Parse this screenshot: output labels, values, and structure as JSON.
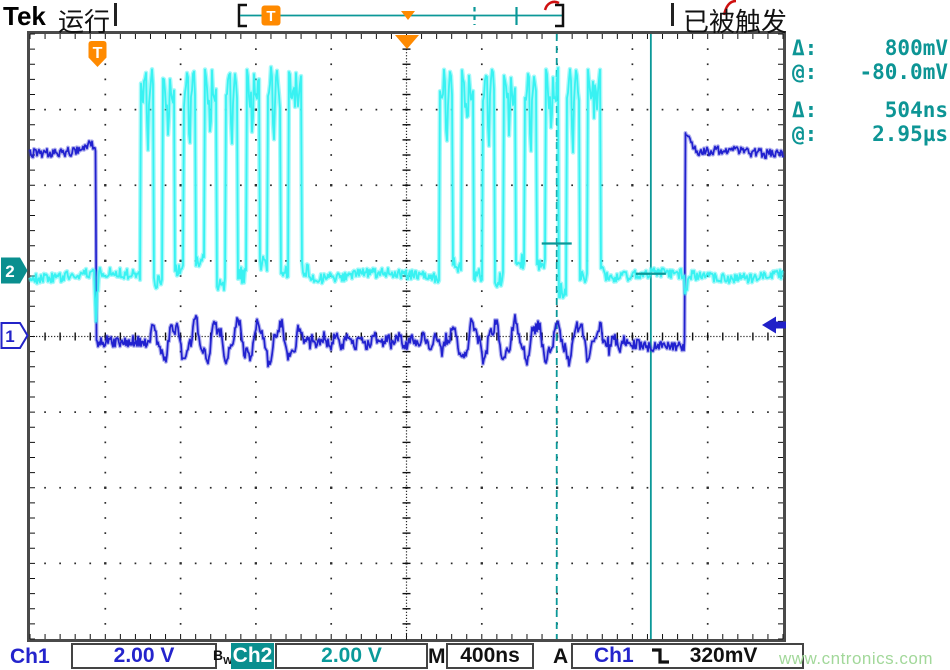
{
  "header": {
    "logo": "Tek",
    "acq_status": "运行",
    "trigger_status": "已被触发"
  },
  "record_bar": {
    "trigger_marker": "T"
  },
  "plot": {
    "trigger_marker": "T",
    "ch1_label": "1",
    "ch2_label": "2"
  },
  "measurements": {
    "rows": [
      {
        "label": "Δ:",
        "value": "800mV"
      },
      {
        "label": "@:",
        "value": "-80.0mV"
      },
      {
        "label": "Δ:",
        "value": "504ns"
      },
      {
        "label": "@:",
        "value": "2.95µs"
      }
    ]
  },
  "statusbar": {
    "ch1_name": "Ch1",
    "ch1_scale": "2.00 V",
    "bw_b": "B",
    "bw_w": "W",
    "ch2_name": "Ch2",
    "ch2_scale": "2.00 V",
    "timebase_label": "M",
    "timebase": "400ns",
    "trigger_label": "A",
    "trigger_source": "Ch1",
    "trigger_level": "320mV"
  },
  "watermark": "www.cntronics.com",
  "colors": {
    "ch1": "#2121cf",
    "ch2": "#38f2f2",
    "teal_ui": "#0b9898",
    "orange": "#ff8a00",
    "graticule": "#2a2a2a"
  },
  "chart_data": {
    "type": "line",
    "instrument": "Tektronix oscilloscope screen",
    "timebase_per_div": "400ns",
    "x_divisions": 10,
    "y_divisions": 8,
    "series": [
      {
        "name": "Ch1",
        "volts_per_div": "2.00 V",
        "color": "#2121cf",
        "ground_div_from_center": 0,
        "high_level_v": 4.9,
        "low_level_v": -0.1,
        "falling_edge_div": 0.87,
        "rising_edge_div": 8.7,
        "note": "high until trigger falling edge, noisy low with ringing during Ch2 bursts, rises back high near right edge"
      },
      {
        "name": "Ch2",
        "volts_per_div": "2.00 V",
        "color": "#38f2f2",
        "ground_div_from_center": 0.87,
        "idle_level_v": 0,
        "burst_high_v": 4.95,
        "burst_windows_div": [
          [
            1.47,
            3.72
          ],
          [
            5.44,
            7.67
          ]
        ],
        "pulse_period_div": 0.28,
        "note": "idle low with two bursts of ~8 fast pulses each"
      }
    ],
    "cursors": {
      "style": "paired",
      "t1_us": 2.45,
      "t2_us": 2.95,
      "v1_mv": 720,
      "v2_mv": -80,
      "delta_t": "504ns",
      "at_t": "2.95µs",
      "delta_v": "800mV",
      "at_v": "-80.0mV"
    },
    "trigger": {
      "source": "Ch1",
      "slope": "falling",
      "level": "320mV",
      "level_div_above_ch1_ground": 0.16
    }
  }
}
